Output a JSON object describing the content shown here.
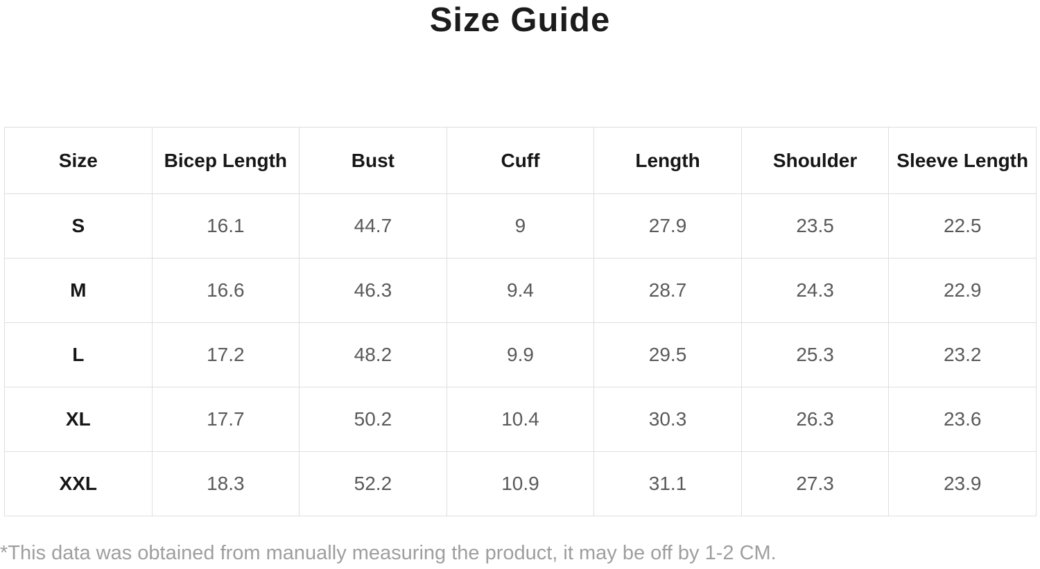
{
  "page": {
    "title": "Size Guide",
    "footnote": "*This data was obtained from manually measuring the product, it may be off by 1-2 CM."
  },
  "table": {
    "columns": [
      "Size",
      "Bicep Length",
      "Bust",
      "Cuff",
      "Length",
      "Shoulder",
      "Sleeve Length"
    ],
    "rows": [
      [
        "S",
        "16.1",
        "44.7",
        "9",
        "27.9",
        "23.5",
        "22.5"
      ],
      [
        "M",
        "16.6",
        "46.3",
        "9.4",
        "28.7",
        "24.3",
        "22.9"
      ],
      [
        "L",
        "17.2",
        "48.2",
        "9.9",
        "29.5",
        "25.3",
        "23.2"
      ],
      [
        "XL",
        "17.7",
        "50.2",
        "10.4",
        "30.3",
        "26.3",
        "23.6"
      ],
      [
        "XXL",
        "18.3",
        "52.2",
        "10.9",
        "31.1",
        "27.3",
        "23.9"
      ]
    ]
  },
  "colors": {
    "title_text": "#1c1c1c",
    "header_text": "#161616",
    "cell_text": "#595959",
    "border": "#dedede",
    "footnote_text": "#9e9e9e",
    "background": "#ffffff"
  }
}
